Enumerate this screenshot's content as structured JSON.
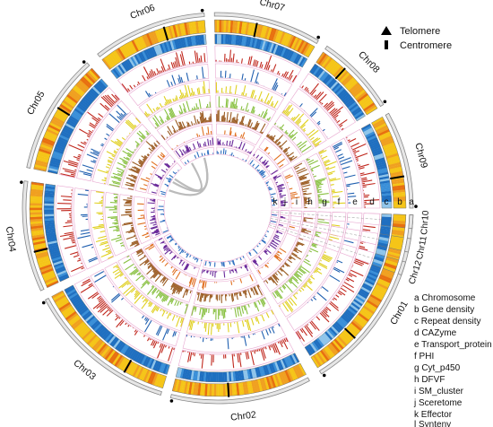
{
  "colors": {
    "chromosome_outline": "#888888",
    "gene_density": [
      "#f5c518",
      "#f0a020",
      "#e87010"
    ],
    "repeat_density": [
      "#1f6fc0",
      "#3a8fd8",
      "#8ec4ea"
    ],
    "cazyme": "#c0281e",
    "transport_protein": "#2060b0",
    "phi": "#e0d020",
    "cyt_p450": "#88c040",
    "dfvf": "#9a5a20",
    "sm_cluster": "#e07020",
    "secretome": "#6a2a9a",
    "effector": "#3070c0",
    "track_frame": "#e8a8d0",
    "synteny": "#bbbbbb"
  },
  "legend_symbols": [
    {
      "icon": "triangle-icon",
      "label": "Telomere"
    },
    {
      "icon": "bar-icon",
      "label": "Centromere"
    }
  ],
  "chromosomes": [
    {
      "name": "Chr01",
      "start_deg": 92,
      "end_deg": 148
    },
    {
      "name": "Chr02",
      "start_deg": 152,
      "end_deg": 194
    },
    {
      "name": "Chr03",
      "start_deg": 197,
      "end_deg": 242
    },
    {
      "name": "Chr04",
      "start_deg": 245,
      "end_deg": 278
    },
    {
      "name": "Chr05",
      "start_deg": 282,
      "end_deg": 318
    },
    {
      "name": "Chr06",
      "start_deg": 322,
      "end_deg": 356
    },
    {
      "name": "Chr07",
      "start_deg": 359,
      "end_deg": 391
    },
    {
      "name": "Chr08",
      "start_deg": 394,
      "end_deg": 418
    },
    {
      "name": "Chr09",
      "start_deg": 421,
      "end_deg": 450
    },
    {
      "name": "Chr10",
      "start_deg": 452,
      "end_deg": 456
    },
    {
      "name": "Chr11",
      "start_deg": 459,
      "end_deg": 463
    },
    {
      "name": "Chr12",
      "start_deg": 466,
      "end_deg": 470
    }
  ],
  "track_letters": [
    "a",
    "b",
    "c",
    "d",
    "e",
    "f",
    "g",
    "h",
    "i",
    "j",
    "k"
  ],
  "track_legend": [
    "a Chromosome",
    "b Gene density",
    "c Repeat density",
    "d CAZyme",
    "e Transport_protein",
    "f PHI",
    "g Cyt_p450",
    "h DFVF",
    "i SM_cluster",
    "j Sceretome",
    "k Effector",
    "l Synteny"
  ]
}
